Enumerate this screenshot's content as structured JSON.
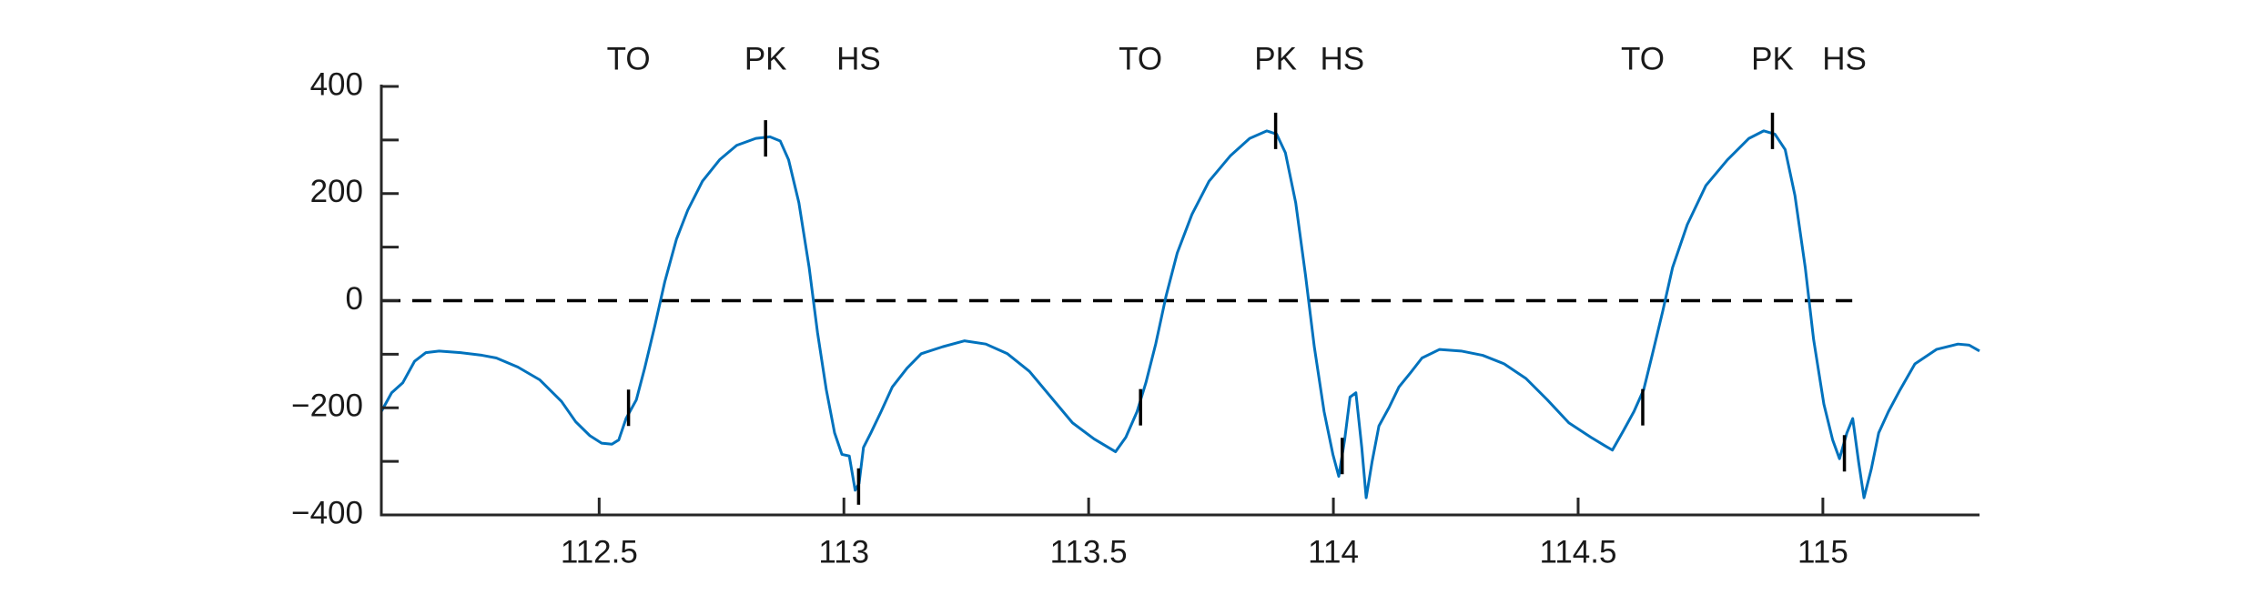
{
  "chart_data": {
    "type": "line",
    "color": "#0072bd",
    "x": [
      112.055,
      112.076,
      112.099,
      112.123,
      112.146,
      112.173,
      112.217,
      112.261,
      112.29,
      112.334,
      112.379,
      112.423,
      112.452,
      112.481,
      112.505,
      112.526,
      112.54,
      112.555,
      112.576,
      112.593,
      112.614,
      112.634,
      112.658,
      112.681,
      112.711,
      112.746,
      112.781,
      112.82,
      112.849,
      112.87,
      112.887,
      112.908,
      112.929,
      112.946,
      112.964,
      112.981,
      112.996,
      113.011,
      113.023,
      113.031,
      113.04,
      113.055,
      113.076,
      113.099,
      113.129,
      113.158,
      113.202,
      113.246,
      113.29,
      113.334,
      113.379,
      113.423,
      113.467,
      113.511,
      113.555,
      113.576,
      113.599,
      113.617,
      113.637,
      113.658,
      113.681,
      113.711,
      113.746,
      113.79,
      113.829,
      113.864,
      113.884,
      113.902,
      113.923,
      113.943,
      113.961,
      113.981,
      113.999,
      114.011,
      114.023,
      114.034,
      114.046,
      114.058,
      114.067,
      114.079,
      114.093,
      114.114,
      114.134,
      114.158,
      114.181,
      114.217,
      114.261,
      114.305,
      114.349,
      114.393,
      114.437,
      114.481,
      114.526,
      114.555,
      114.57,
      114.593,
      114.614,
      114.634,
      114.652,
      114.673,
      114.693,
      114.723,
      114.761,
      114.805,
      114.849,
      114.879,
      114.902,
      114.923,
      114.943,
      114.964,
      114.981,
      115.002,
      115.02,
      115.034,
      115.049,
      115.061,
      115.073,
      115.084,
      115.099,
      115.114,
      115.134,
      115.158,
      115.188,
      115.232,
      115.276,
      115.299,
      115.32
    ],
    "values": [
      -207,
      -172,
      -153,
      -113,
      -97,
      -94,
      -97,
      -102,
      -107,
      -124,
      -148,
      -188,
      -226,
      -252,
      -266,
      -268,
      -260,
      -220,
      -185,
      -126,
      -46,
      35,
      115,
      169,
      223,
      263,
      290,
      303,
      306,
      298,
      263,
      183,
      62,
      -59,
      -166,
      -247,
      -287,
      -290,
      -354,
      -341,
      -274,
      -247,
      -207,
      -161,
      -126,
      -99,
      -86,
      -75,
      -81,
      -99,
      -132,
      -180,
      -228,
      -258,
      -282,
      -255,
      -207,
      -153,
      -81,
      8,
      89,
      161,
      223,
      271,
      303,
      317,
      311,
      276,
      183,
      48,
      -86,
      -207,
      -287,
      -328,
      -260,
      -180,
      -172,
      -274,
      -368,
      -301,
      -234,
      -199,
      -161,
      -134,
      -107,
      -91,
      -94,
      -102,
      -118,
      -145,
      -185,
      -228,
      -255,
      -271,
      -279,
      -242,
      -207,
      -166,
      -99,
      -19,
      62,
      142,
      215,
      263,
      303,
      317,
      311,
      282,
      196,
      62,
      -72,
      -193,
      -260,
      -295,
      -247,
      -220,
      -301,
      -368,
      -314,
      -247,
      -207,
      -166,
      -118,
      -91,
      -81,
      -83,
      -94
    ],
    "xlim": [
      112.055,
      115.32
    ],
    "xticks": [
      112.5,
      113,
      113.5,
      114,
      114.5,
      115
    ],
    "ylim": [
      -400,
      400
    ],
    "yticks": [
      {
        "value": -400,
        "label": "−400"
      },
      {
        "value": -200,
        "label": "−200"
      },
      0,
      200,
      400
    ],
    "minor_yticks": [
      -300,
      -100,
      100,
      300
    ],
    "zero_line": {
      "value": 0,
      "x_end": 115.06
    },
    "events": [
      {
        "label": "TO",
        "x": 112.56,
        "y": -200
      },
      {
        "label": "PK",
        "x": 112.84,
        "y": 303
      },
      {
        "label": "HS",
        "x": 113.03,
        "y": -347
      },
      {
        "label": "TO",
        "x": 113.606,
        "y": -199
      },
      {
        "label": "PK",
        "x": 113.882,
        "y": 317
      },
      {
        "label": "HS",
        "x": 114.018,
        "y": -290
      },
      {
        "label": "TO",
        "x": 114.632,
        "y": -199
      },
      {
        "label": "PK",
        "x": 114.897,
        "y": 317
      },
      {
        "label": "HS",
        "x": 115.044,
        "y": -285
      }
    ]
  }
}
